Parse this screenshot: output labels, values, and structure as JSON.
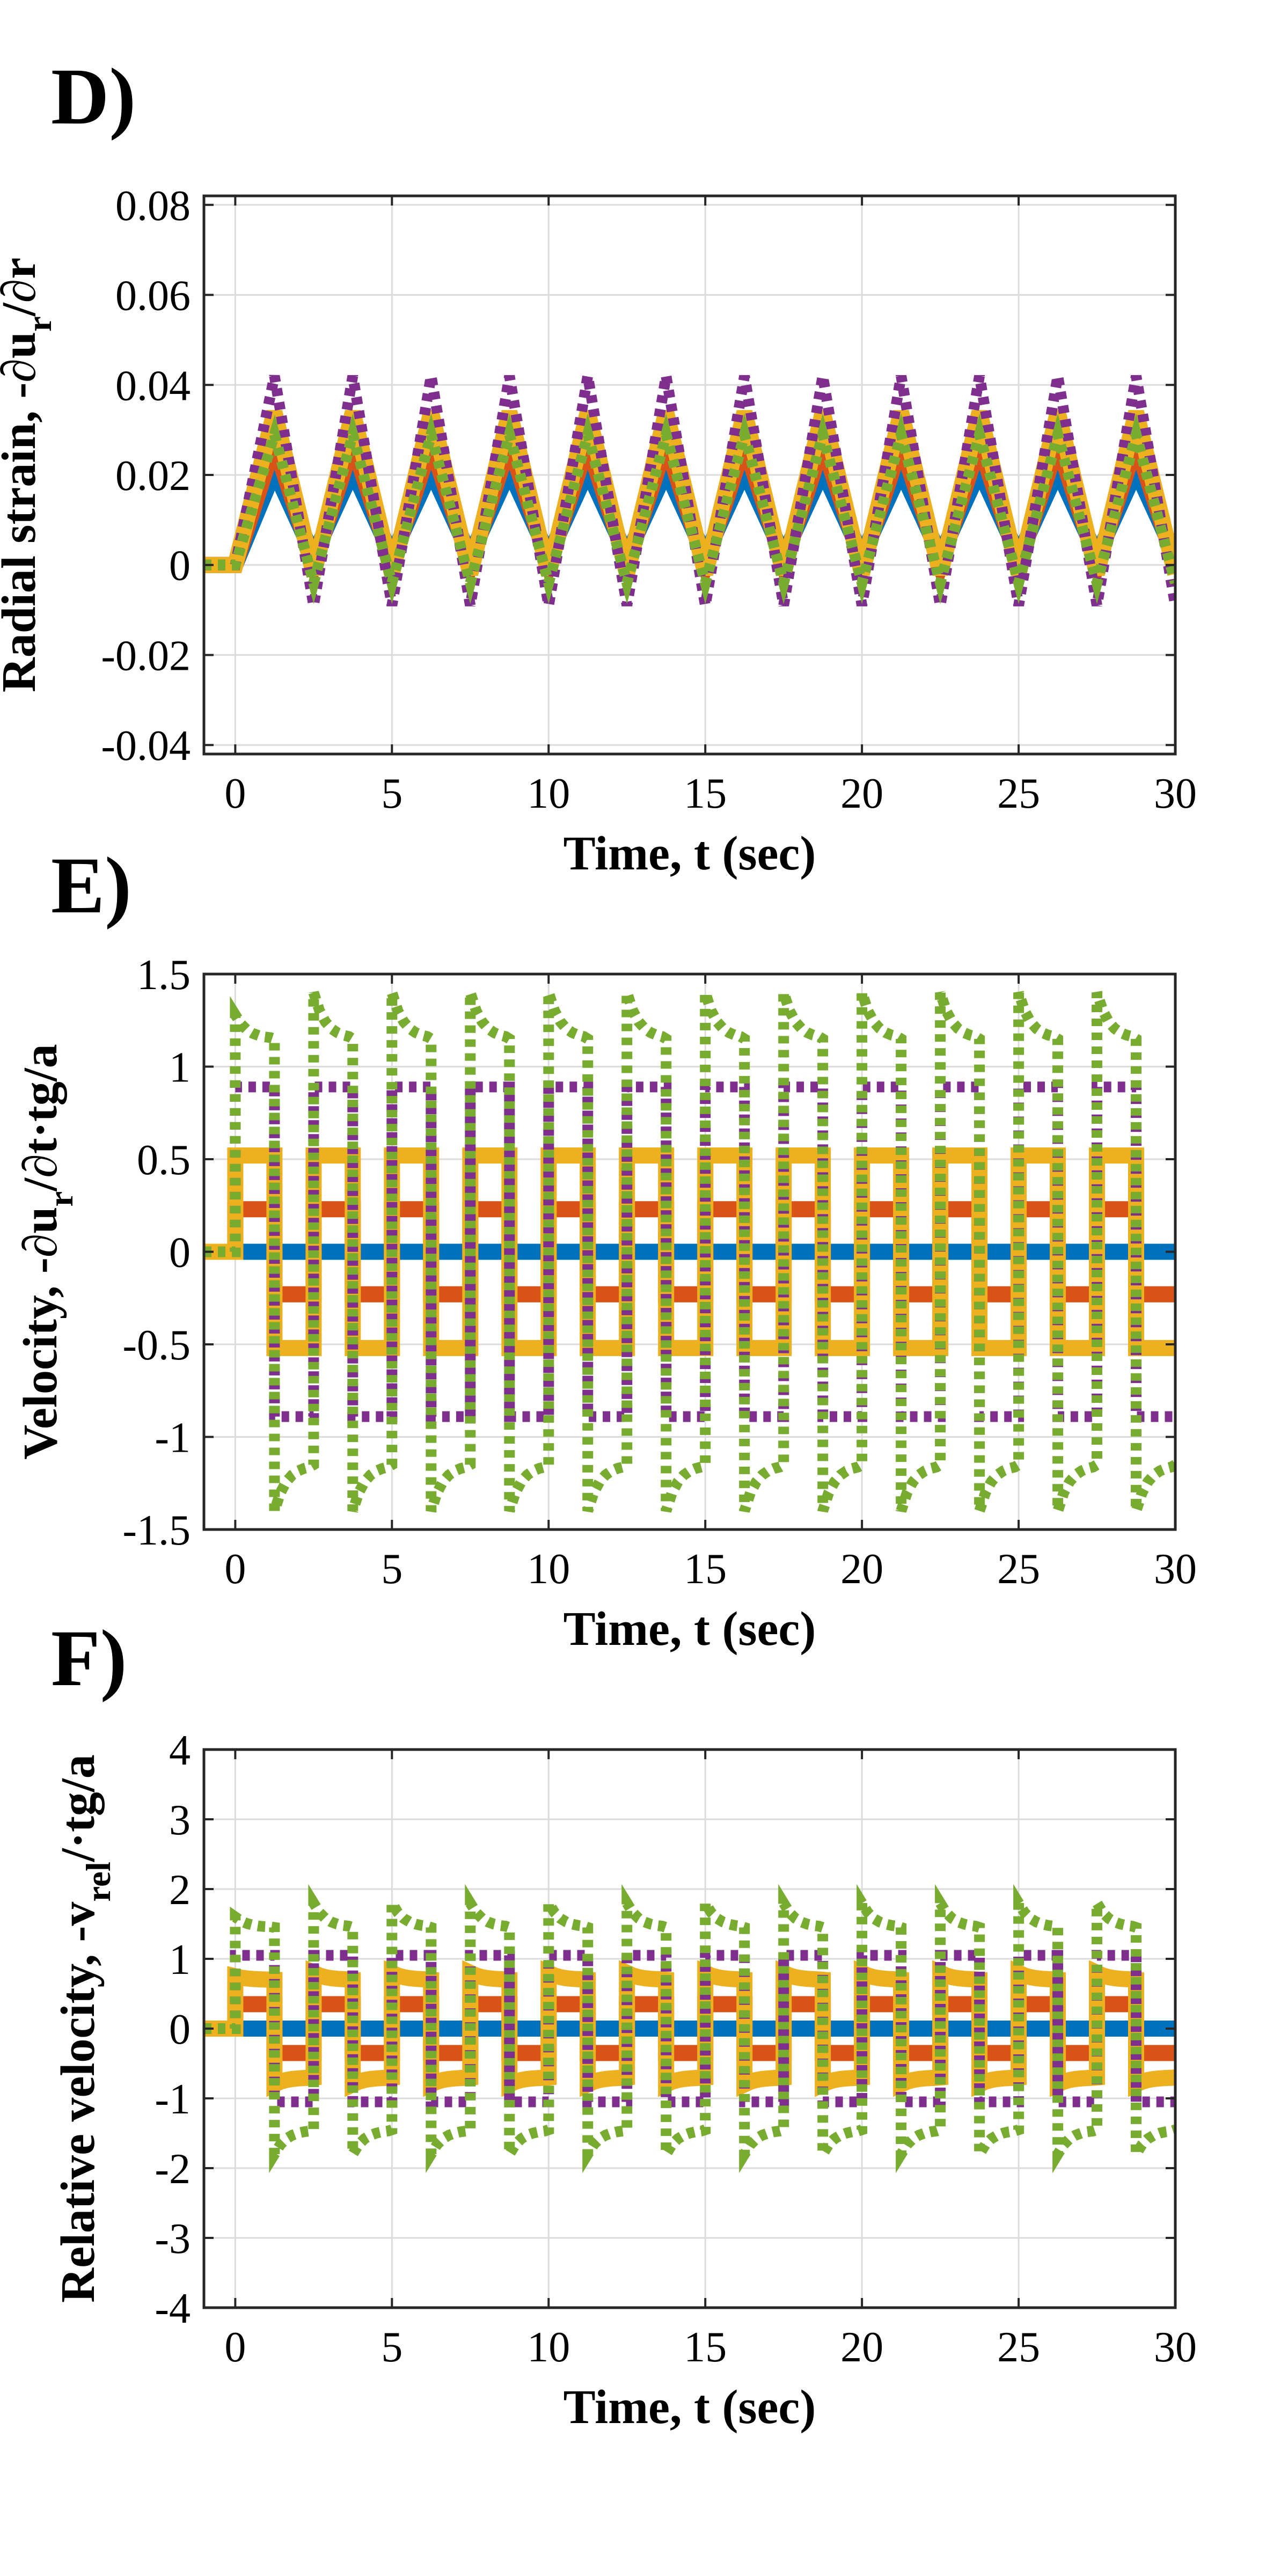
{
  "chart_data": [
    {
      "panel_label": "D)",
      "type": "line",
      "xlabel": "Time, t (sec)",
      "ylabel": "Radial strain, -∂u",
      "ylabel_sub": "r",
      "ylabel_tail": "/∂r",
      "xlim": [
        -1,
        30
      ],
      "ylim": [
        -0.042,
        0.082
      ],
      "xticks": [
        0,
        5,
        10,
        15,
        20,
        25,
        30
      ],
      "xtick_labels": [
        "0",
        "5",
        "10",
        "15",
        "20",
        "25",
        "30"
      ],
      "yticks": [
        -0.04,
        -0.02,
        0,
        0.02,
        0.04,
        0.06,
        0.08
      ],
      "ytick_labels": [
        "-0.04",
        "-0.02",
        "0",
        "0.02",
        "0.04",
        "0.06",
        "0.08"
      ],
      "grid": true,
      "period": 2.5,
      "series": [
        {
          "color": "#0072BD",
          "style": "solid",
          "kind": "tri",
          "peak": 0.021,
          "trough": 0.002
        },
        {
          "color": "#D95319",
          "style": "solid",
          "kind": "tri",
          "peak": 0.027,
          "trough": 0.0
        },
        {
          "color": "#EDB120",
          "style": "solid",
          "kind": "tri",
          "peak": 0.034,
          "trough": -0.002
        },
        {
          "color": "#7E2F8E",
          "style": "dotted",
          "kind": "tri",
          "peak": 0.042,
          "trough": -0.009
        },
        {
          "color": "#77AC30",
          "style": "dotted",
          "kind": "tri",
          "peak": 0.029,
          "trough": -0.004
        }
      ]
    },
    {
      "panel_label": "E)",
      "type": "line",
      "xlabel": "Time, t (sec)",
      "ylabel": "Velocity, -∂u",
      "ylabel_sub": "r",
      "ylabel_tail": "/∂t·tg/a",
      "xlim": [
        -1,
        30
      ],
      "ylim": [
        -1.5,
        1.5
      ],
      "xticks": [
        0,
        5,
        10,
        15,
        20,
        25,
        30
      ],
      "xtick_labels": [
        "0",
        "5",
        "10",
        "15",
        "20",
        "25",
        "30"
      ],
      "yticks": [
        -1.5,
        -1,
        -0.5,
        0,
        0.5,
        1,
        1.5
      ],
      "ytick_labels": [
        "-1.5",
        "-1",
        "-0.5",
        "0",
        "0.5",
        "1",
        "1.5"
      ],
      "grid": true,
      "period": 2.5,
      "series": [
        {
          "color": "#0072BD",
          "style": "solid",
          "kind": "sq",
          "amp": 0.0,
          "start": 0.0
        },
        {
          "color": "#D95319",
          "style": "solid",
          "kind": "sq",
          "amp": 0.23,
          "start": 0.23
        },
        {
          "color": "#EDB120",
          "style": "solid",
          "kind": "sq",
          "amp": 0.52,
          "start": 0.52
        },
        {
          "color": "#7E2F8E",
          "style": "dotted",
          "kind": "sq",
          "amp": 0.89,
          "start": 0.89
        },
        {
          "color": "#77AC30",
          "style": "dotted",
          "kind": "sq",
          "amp": 1.15,
          "start": 1.28,
          "peak": 1.4
        }
      ]
    },
    {
      "panel_label": "F)",
      "type": "line",
      "xlabel": "Time, t (sec)",
      "ylabel": "Relative velocity, -v",
      "ylabel_sub": "rel",
      "ylabel_tail": "/·tg/a",
      "xlim": [
        -1,
        30
      ],
      "ylim": [
        -4,
        4
      ],
      "xticks": [
        0,
        5,
        10,
        15,
        20,
        25,
        30
      ],
      "xtick_labels": [
        "0",
        "5",
        "10",
        "15",
        "20",
        "25",
        "30"
      ],
      "yticks": [
        -4,
        -3,
        -2,
        -1,
        0,
        1,
        2,
        3,
        4
      ],
      "ytick_labels": [
        "-4",
        "-3",
        "-2",
        "-1",
        "0",
        "1",
        "2",
        "3",
        "4"
      ],
      "grid": true,
      "period": 2.5,
      "series": [
        {
          "color": "#0072BD",
          "style": "solid",
          "kind": "sq",
          "amp": 0.0,
          "start": 0.0
        },
        {
          "color": "#D95319",
          "style": "solid",
          "kind": "sq",
          "amp": 0.35,
          "start": 0.35
        },
        {
          "color": "#EDB120",
          "style": "solid",
          "kind": "sq",
          "amp": 0.7,
          "start": 0.75,
          "peak": 0.8
        },
        {
          "color": "#7E2F8E",
          "style": "dotted",
          "kind": "sq",
          "amp": 1.05,
          "start": 1.05
        },
        {
          "color": "#77AC30",
          "style": "dotted",
          "kind": "sq",
          "amp": 1.45,
          "start": 1.6,
          "peak": 1.8
        }
      ]
    }
  ]
}
